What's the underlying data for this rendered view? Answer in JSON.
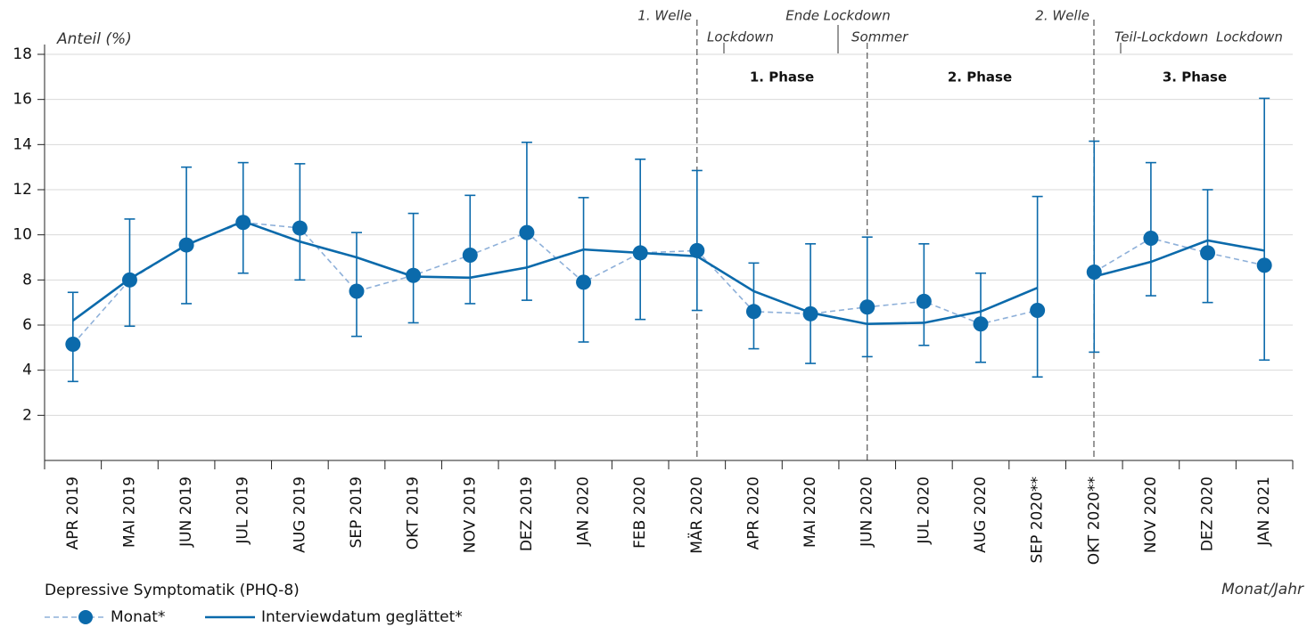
{
  "chart_data": {
    "type": "line",
    "y_label": "Anteil (%)",
    "x_label": "Monat/Jahr",
    "legend_title": "Depressive Symptomatik (PHQ-8)",
    "categories": [
      "APR 2019",
      "MAI 2019",
      "JUN 2019",
      "JUL 2019",
      "AUG 2019",
      "SEP 2019",
      "OKT 2019",
      "NOV 2019",
      "DEZ 2019",
      "JAN 2020",
      "FEB 2020",
      "MÄR 2020",
      "APR 2020",
      "MAI 2020",
      "JUN 2020",
      "JUL 2020",
      "AUG 2020",
      "SEP 2020**",
      "OKT 2020**",
      "NOV 2020",
      "DEZ 2020",
      "JAN 2021"
    ],
    "series": [
      {
        "name": "Monat*",
        "color": "#8eb0d9",
        "marker_color": "#0b6aab",
        "values": [
          5.15,
          8.0,
          9.55,
          10.55,
          10.3,
          7.5,
          8.2,
          9.1,
          10.1,
          7.9,
          9.2,
          9.3,
          6.6,
          6.5,
          6.8,
          7.05,
          6.05,
          6.65,
          8.35,
          9.85,
          9.2,
          8.65
        ],
        "lower": [
          3.5,
          5.95,
          6.95,
          8.3,
          8.0,
          5.5,
          6.1,
          6.95,
          7.1,
          5.25,
          6.25,
          6.65,
          4.95,
          4.3,
          4.6,
          5.1,
          4.35,
          3.7,
          4.8,
          7.3,
          7.0,
          4.45
        ],
        "upper": [
          7.45,
          10.7,
          13.0,
          13.2,
          13.15,
          10.1,
          10.95,
          11.75,
          14.1,
          11.65,
          13.35,
          12.85,
          8.75,
          9.6,
          9.9,
          9.6,
          8.3,
          11.7,
          14.15,
          13.2,
          12.0,
          16.05
        ]
      },
      {
        "name": "Interviewdatum geglättet*",
        "color": "#0b6aab",
        "values": [
          6.2,
          8.05,
          9.55,
          10.6,
          9.7,
          9.0,
          8.15,
          8.1,
          8.55,
          9.35,
          9.2,
          9.05,
          7.5,
          6.55,
          6.05,
          6.1,
          6.6,
          7.65,
          8.15,
          8.8,
          9.75,
          9.3
        ]
      }
    ],
    "line_break_after": 17,
    "ylim": [
      0,
      18
    ],
    "yticks": [
      2,
      4,
      6,
      8,
      10,
      12,
      14,
      16,
      18
    ],
    "grid": true,
    "annotations": {
      "welle1": "1. Welle",
      "lockdown1": "Lockdown",
      "ende_lockdown": "Ende Lockdown",
      "sommer": "Sommer",
      "welle2": "2. Welle",
      "teil_lockdown": "Teil-Lockdown",
      "lockdown2": "Lockdown",
      "phase1": "1. Phase",
      "phase2": "2. Phase",
      "phase3": "3. Phase"
    }
  }
}
